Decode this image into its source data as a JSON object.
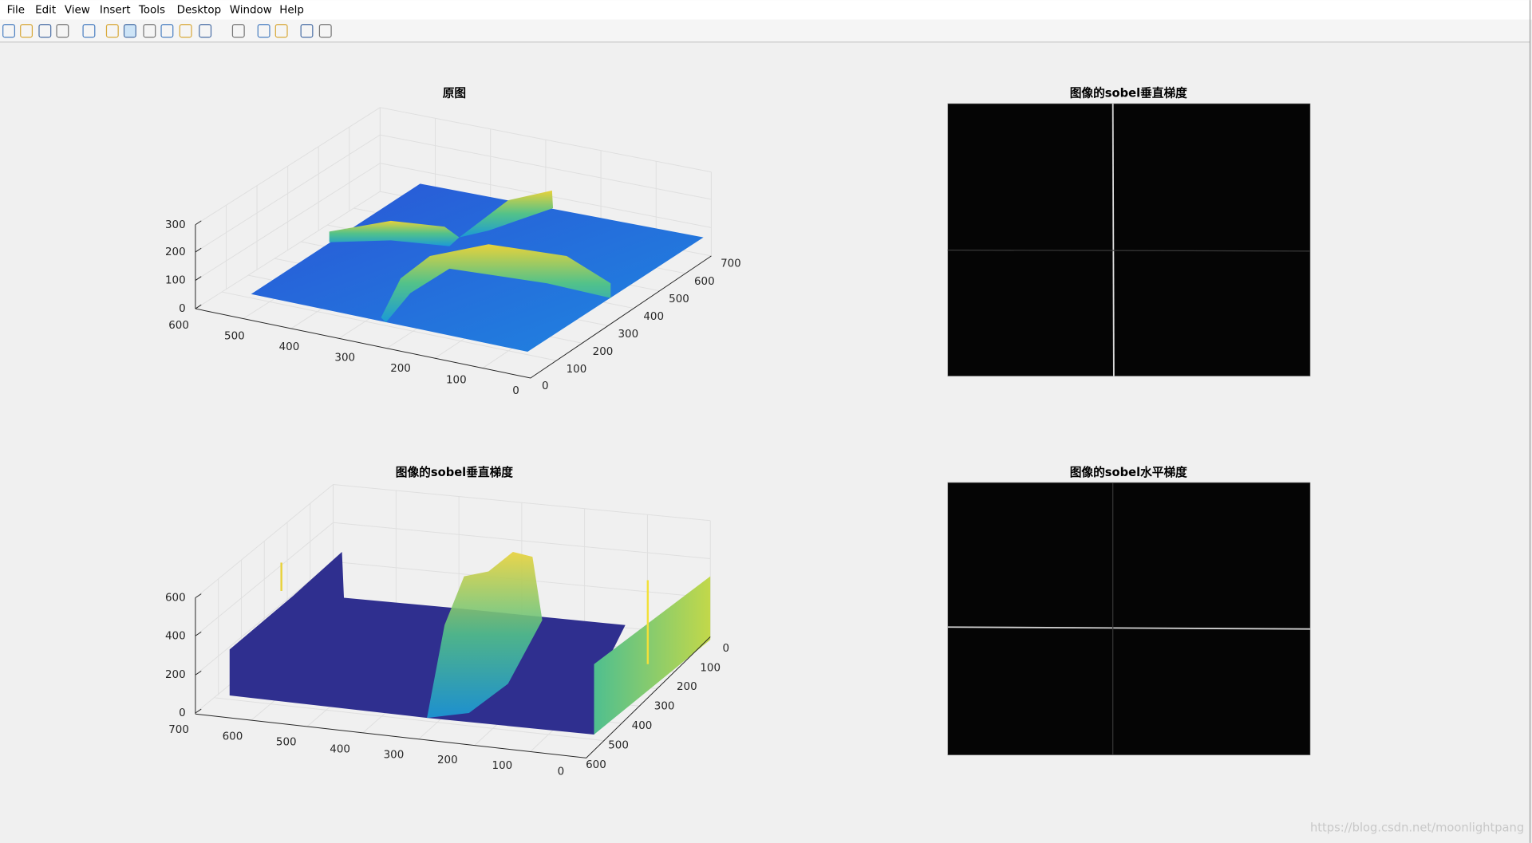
{
  "menu": [
    "File",
    "Edit",
    "View",
    "Insert",
    "Tools",
    "Desktop",
    "Window",
    "Help"
  ],
  "plots": [
    {
      "title": "原图",
      "z_ticks": [
        0,
        100,
        200,
        300
      ],
      "y_ticks": [
        600,
        500,
        400,
        300,
        200,
        100,
        0
      ],
      "x_ticks": [
        0,
        100,
        200,
        300,
        400,
        500,
        600,
        700
      ]
    },
    {
      "title": "图像的sobel垂直梯度",
      "z_ticks": [
        0,
        200,
        400,
        600
      ],
      "y_ticks": [
        700,
        600,
        500,
        400,
        300,
        200,
        100,
        0
      ],
      "x_ticks": [
        0,
        100,
        200,
        300,
        400,
        500,
        600
      ]
    }
  ],
  "images": [
    {
      "title": "图像的sobel垂直梯度"
    },
    {
      "title": "图像的sobel水平梯度"
    }
  ],
  "watermark": "https://blog.csdn.net/moonlightpang"
}
